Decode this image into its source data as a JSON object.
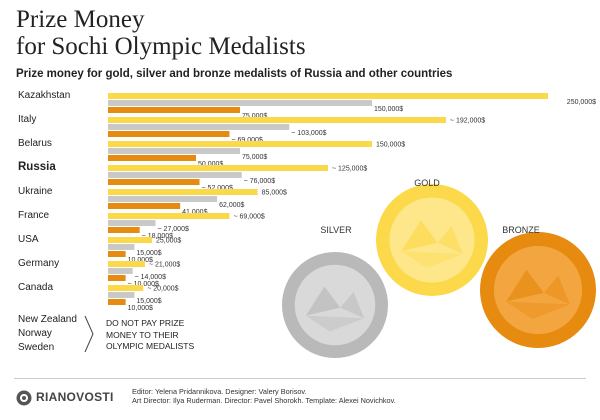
{
  "title": "Prize Money\nfor Sochi Olympic Medalists",
  "subtitle": "Prize money for gold, silver and bronze medalists of Russia and other countries",
  "colors": {
    "gold": "#fcd94a",
    "silver": "#c9c9c9",
    "bronze": "#e68a10"
  },
  "chart_data": {
    "type": "bar",
    "orientation": "horizontal",
    "categories": [
      "Kazakhstan",
      "Italy",
      "Belarus",
      "Russia",
      "Ukraine",
      "France",
      "USA",
      "Germany",
      "Canada"
    ],
    "highlight": "Russia",
    "series": [
      {
        "name": "GOLD",
        "values": [
          250000,
          192000,
          150000,
          125000,
          85000,
          69000,
          25000,
          21000,
          20000
        ],
        "labels": [
          "250,000$",
          "~ 192,000$",
          "150,000$",
          "~ 125,000$",
          "85,000$",
          "~ 69,000$",
          "25,000$",
          "~ 21,000$",
          "~ 20,000$"
        ]
      },
      {
        "name": "SILVER",
        "values": [
          150000,
          103000,
          75000,
          76000,
          62000,
          27000,
          15000,
          14000,
          15000
        ],
        "labels": [
          "150,000$",
          "~ 103,000$",
          "75,000$",
          "~ 76,000$",
          "62,000$",
          "~ 27,000$",
          "15,000$",
          "~ 14,000$",
          "15,000$"
        ]
      },
      {
        "name": "BRONZE",
        "values": [
          75000,
          69000,
          50000,
          52000,
          41000,
          18000,
          10000,
          10000,
          10000
        ],
        "labels": [
          "75,000$",
          "~ 69,000$",
          "50,000$",
          "~ 52,000$",
          "41,000$",
          "~ 18,000$",
          "10,000$",
          "~ 10,000$",
          "10,000$"
        ]
      }
    ]
  },
  "medals": {
    "silver_label": "SILVER",
    "gold_label": "GOLD",
    "bronze_label": "BRONZE"
  },
  "note": {
    "countries": [
      "New Zealand",
      "Norway",
      "Sweden"
    ],
    "text": "DO NOT PAY PRIZE MONEY TO THEIR OLYMPIC MEDALISTS"
  },
  "footer": {
    "logo": "RIANOVOSTI",
    "credits_line1": "Editor: Yelena Pridannikova. Designer: Valery Borisov.",
    "credits_line2": "Art Director: Ilya Ruderman. Director: Pavel Shorokh. Template: Alexei Novichkov."
  }
}
